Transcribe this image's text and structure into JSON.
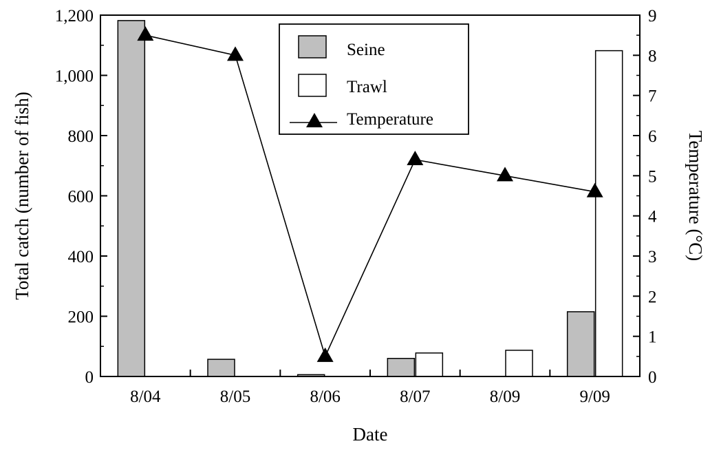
{
  "chart_data": {
    "type": "bar",
    "categories": [
      "8/04",
      "8/05",
      "8/06",
      "8/07",
      "8/09",
      "9/09"
    ],
    "series": [
      {
        "name": "Seine",
        "type": "bar",
        "axis": "left",
        "color": "#bfbfbf",
        "values": [
          1182,
          57,
          6,
          60,
          0,
          215
        ]
      },
      {
        "name": "Trawl",
        "type": "bar",
        "axis": "left",
        "color": "#ffffff",
        "values": [
          0,
          0,
          0,
          78,
          87,
          1082
        ]
      },
      {
        "name": "Temperature",
        "type": "line",
        "marker": "triangle",
        "axis": "right",
        "color": "#000000",
        "values": [
          8.5,
          8.0,
          0.5,
          5.4,
          5.0,
          4.6
        ]
      }
    ],
    "xlabel": "Date",
    "ylabel": "Total catch (number of fish)",
    "y2label": "Temperature (°C)",
    "ylim": [
      0,
      1200
    ],
    "y2lim": [
      0,
      9
    ],
    "yticks": [
      "0",
      "200",
      "400",
      "600",
      "800",
      "1,000",
      "1,200"
    ],
    "y2ticks": [
      "0",
      "1",
      "2",
      "3",
      "4",
      "5",
      "6",
      "7",
      "8",
      "9"
    ],
    "legend": {
      "position": "top-center",
      "entries": [
        "Seine",
        "Trawl",
        "Temperature"
      ]
    },
    "grid": false
  }
}
